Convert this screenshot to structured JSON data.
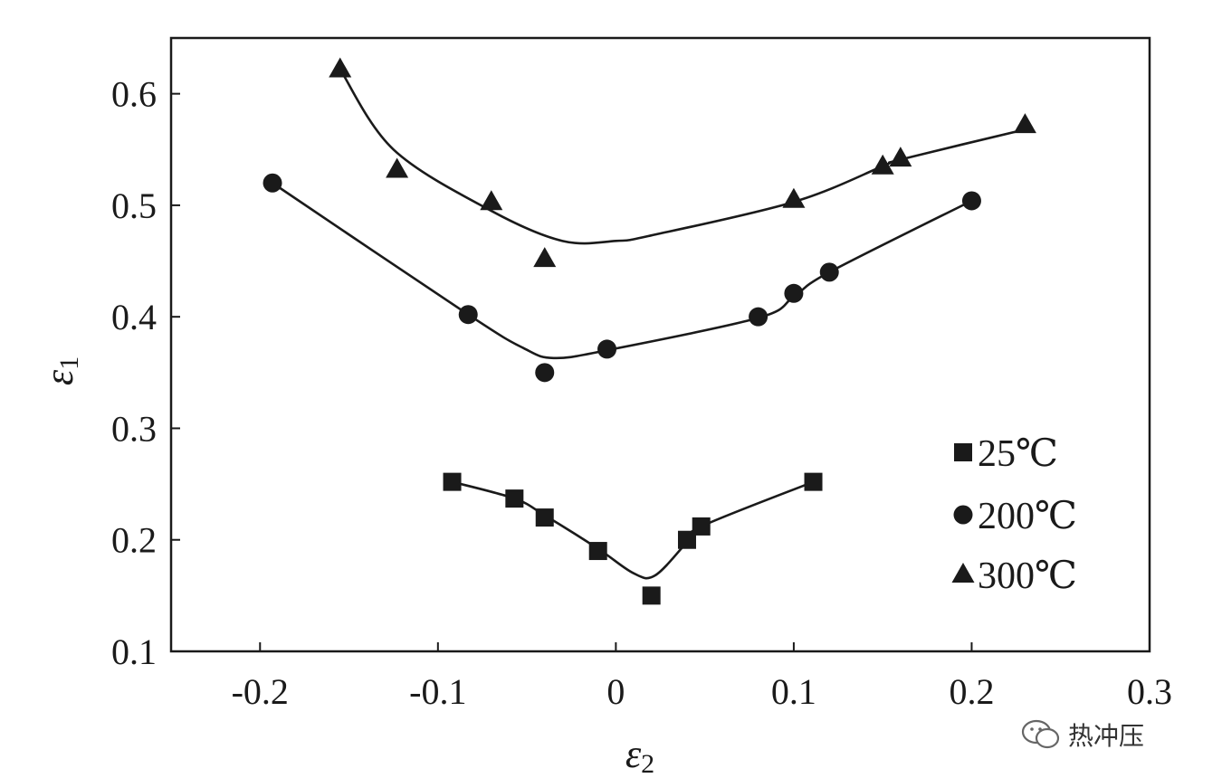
{
  "chart_data": {
    "type": "scatter",
    "title": "",
    "xlabel": "ε",
    "xlabel_sub": "2",
    "ylabel": "ε",
    "ylabel_sub": "1",
    "xlim": [
      -0.25,
      0.3
    ],
    "ylim": [
      0.1,
      0.65
    ],
    "xticks": [
      -0.2,
      -0.1,
      0,
      0.1,
      0.2,
      0.3
    ],
    "xtick_labels": [
      "-0.2",
      "-0.1",
      "0",
      "0.1",
      "0.2",
      "0.3"
    ],
    "yticks": [
      0.1,
      0.2,
      0.3,
      0.4,
      0.5,
      0.6
    ],
    "ytick_labels": [
      "0.1",
      "0.2",
      "0.3",
      "0.4",
      "0.5",
      "0.6"
    ],
    "grid": false,
    "legend_position": "bottom-right",
    "series": [
      {
        "name": "25℃",
        "marker": "square",
        "x": [
          -0.092,
          -0.057,
          -0.04,
          -0.01,
          0.02,
          0.04,
          0.048,
          0.111
        ],
        "y": [
          0.252,
          0.237,
          0.22,
          0.19,
          0.15,
          0.2,
          0.212,
          0.252
        ],
        "fit_x": [
          -0.092,
          -0.057,
          -0.04,
          -0.01,
          0.01,
          0.022,
          0.04,
          0.048,
          0.111
        ],
        "fit_y": [
          0.252,
          0.237,
          0.222,
          0.192,
          0.17,
          0.168,
          0.198,
          0.212,
          0.252
        ]
      },
      {
        "name": "200℃",
        "marker": "circle",
        "x": [
          -0.193,
          -0.083,
          -0.04,
          -0.005,
          0.08,
          0.1,
          0.12,
          0.2
        ],
        "y": [
          0.52,
          0.402,
          0.35,
          0.371,
          0.4,
          0.421,
          0.44,
          0.504
        ],
        "fit_x": [
          -0.193,
          -0.083,
          -0.052,
          -0.035,
          -0.005,
          0.08,
          0.1,
          0.12,
          0.2
        ],
        "fit_y": [
          0.52,
          0.402,
          0.372,
          0.363,
          0.37,
          0.399,
          0.418,
          0.44,
          0.504
        ]
      },
      {
        "name": "300℃",
        "marker": "triangle",
        "x": [
          -0.155,
          -0.123,
          -0.07,
          -0.04,
          0.1,
          0.15,
          0.16,
          0.23
        ],
        "y": [
          0.622,
          0.532,
          0.503,
          0.452,
          0.505,
          0.535,
          0.542,
          0.572
        ],
        "fit_x": [
          -0.155,
          -0.125,
          -0.07,
          -0.03,
          0.0,
          0.02,
          0.1,
          0.15,
          0.16,
          0.23
        ],
        "fit_y": [
          0.622,
          0.55,
          0.495,
          0.468,
          0.468,
          0.473,
          0.503,
          0.535,
          0.541,
          0.568
        ]
      }
    ]
  },
  "watermark": {
    "text": "热冲压",
    "icon": "wechat-icon"
  }
}
